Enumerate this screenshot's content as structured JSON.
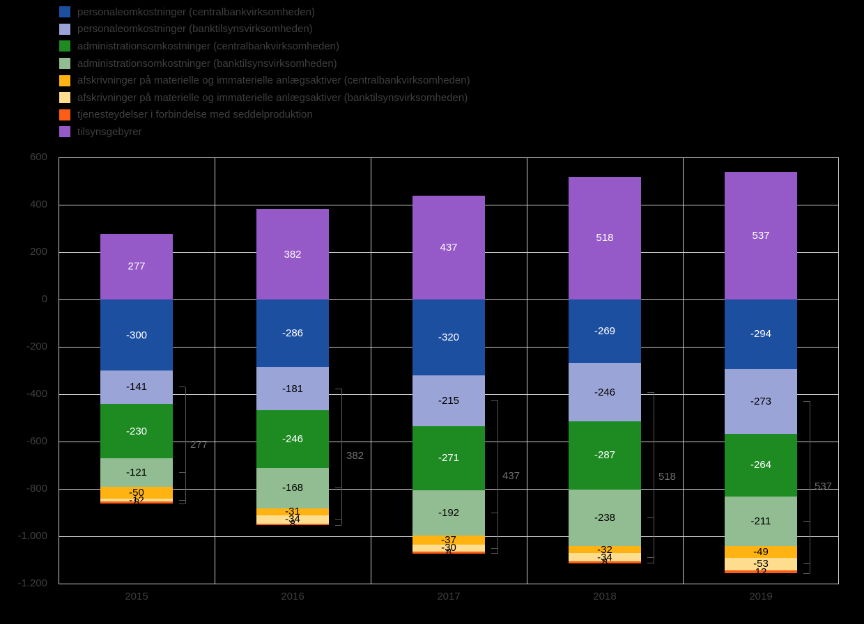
{
  "colors": {
    "background": "#000000",
    "gridline": "#cfcfcf",
    "axis_text": "#3f3f3f",
    "legend_text": "#3f3f3f",
    "bracket_line": "#595959",
    "bracket_text": "#6e6e6e"
  },
  "legend": {
    "items": [
      {
        "label": "personaleomkostninger (centralbankvirksomheden)",
        "color": "#1d4fa1"
      },
      {
        "label": "personaleomkostninger (banktilsynsvirksomheden)",
        "color": "#9aa4d6"
      },
      {
        "label": "administrationsomkostninger (centralbankvirksomheden)",
        "color": "#1e8b22"
      },
      {
        "label": "administrationsomkostninger (banktilsynsvirksomheden)",
        "color": "#92bd92"
      },
      {
        "label": "afskrivninger på materielle og immaterielle anlægsaktiver (centralbankvirksomheden)",
        "color": "#feb313"
      },
      {
        "label": "afskrivninger på materielle og immaterielle anlægsaktiver (banktilsynsvirksomheden)",
        "color": "#fedd8e"
      },
      {
        "label": "tjenesteydelser i forbindelse med seddelproduktion",
        "color": "#fe5d15"
      },
      {
        "label": "tilsynsgebyrer",
        "color": "#9559c8"
      }
    ]
  },
  "chart_data": {
    "type": "bar",
    "stacked": true,
    "grid": true,
    "legend_position": "top-left",
    "categories": [
      "2015",
      "2016",
      "2017",
      "2018",
      "2019"
    ],
    "series": [
      {
        "name": "personaleomkostninger (centralbankvirksomheden)",
        "color": "#1d4fa1",
        "label_color": "#ffffff",
        "values": [
          -300,
          -286,
          -320,
          -269,
          -294
        ]
      },
      {
        "name": "personaleomkostninger (banktilsynsvirksomheden)",
        "color": "#9aa4d6",
        "label_color": "#000000",
        "values": [
          -141,
          -181,
          -215,
          -246,
          -273
        ]
      },
      {
        "name": "administrationsomkostninger (centralbankvirksomheden)",
        "color": "#1e8b22",
        "label_color": "#ffffff",
        "values": [
          -230,
          -246,
          -271,
          -287,
          -264
        ]
      },
      {
        "name": "administrationsomkostninger (banktilsynsvirksomheden)",
        "color": "#92bd92",
        "label_color": "#000000",
        "values": [
          -121,
          -168,
          -192,
          -238,
          -211
        ]
      },
      {
        "name": "afskrivninger på materielle og immaterielle anlægsaktiver (centralbankvirksomheden)",
        "color": "#feb313",
        "label_color": "#000000",
        "values": [
          -50,
          -31,
          -37,
          -32,
          -49
        ]
      },
      {
        "name": "afskrivninger på materielle og immaterielle anlægsaktiver (banktilsynsvirksomheden)",
        "color": "#fedd8e",
        "label_color": "#000000",
        "values": [
          -12,
          -34,
          -30,
          -34,
          -53
        ]
      },
      {
        "name": "tjenesteydelser i forbindelse med seddelproduktion",
        "color": "#fe5d15",
        "label_color": "#000000",
        "values": [
          -8,
          -8,
          -8,
          -8,
          -12
        ],
        "value_labels": [
          "8",
          "8",
          "8",
          "8",
          "12"
        ]
      },
      {
        "name": "tilsynsgebyrer",
        "color": "#9559c8",
        "label_color": "#ffffff",
        "values": [
          277,
          382,
          437,
          518,
          537
        ]
      }
    ],
    "bracket_annotations": {
      "values": [
        "277",
        "382",
        "437",
        "518",
        "537"
      ]
    },
    "y_axis": {
      "min": -1200,
      "max": 600,
      "step": 200,
      "tick_values": [
        600,
        400,
        200,
        0,
        -200,
        -400,
        -600,
        -800,
        -1000,
        -1200
      ],
      "tick_labels": [
        "600",
        "400",
        "200",
        "0",
        "-200",
        "-400",
        "-600",
        "-800",
        "-1.000",
        "-1.200"
      ]
    }
  }
}
